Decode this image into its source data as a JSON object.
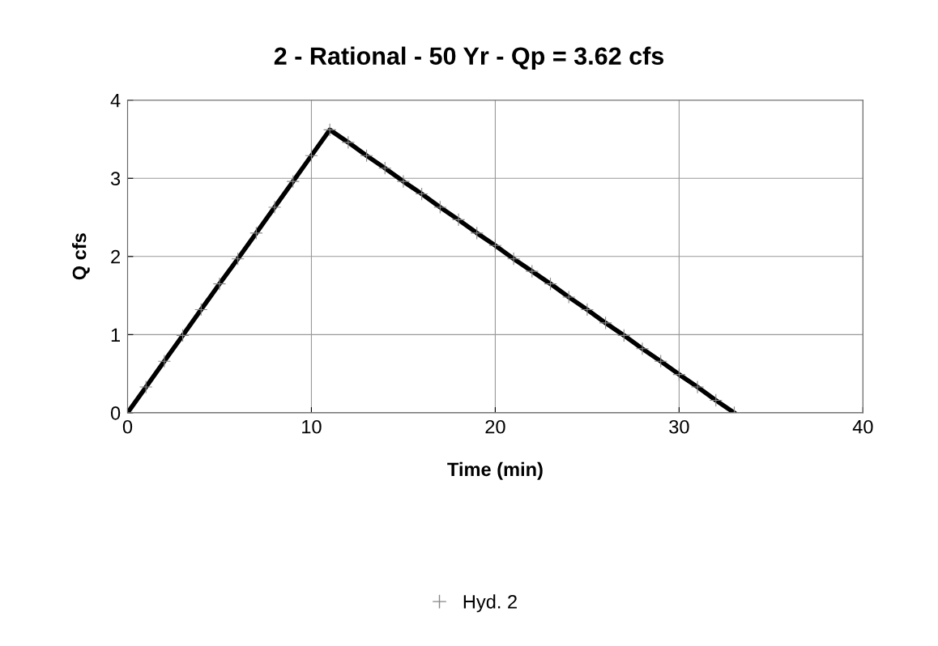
{
  "chart_data": {
    "type": "line",
    "title": "2 - Rational - 50 Yr - Qp = 3.62 cfs",
    "xlabel": "Time (min)",
    "ylabel": "Q cfs",
    "x": [
      0,
      1,
      2,
      3,
      4,
      5,
      6,
      7,
      8,
      9,
      10,
      11,
      12,
      13,
      14,
      15,
      16,
      17,
      18,
      19,
      20,
      21,
      22,
      23,
      24,
      25,
      26,
      27,
      28,
      29,
      30,
      31,
      32,
      33
    ],
    "series": [
      {
        "name": "Hyd. 2",
        "color": "#000000",
        "values": [
          0,
          0.33,
          0.66,
          0.99,
          1.32,
          1.65,
          1.97,
          2.3,
          2.63,
          2.96,
          3.29,
          3.62,
          3.46,
          3.29,
          3.13,
          2.96,
          2.8,
          2.63,
          2.47,
          2.3,
          2.14,
          1.97,
          1.81,
          1.65,
          1.48,
          1.32,
          1.15,
          0.99,
          0.82,
          0.66,
          0.49,
          0.33,
          0.16,
          0
        ]
      }
    ],
    "xlim": [
      0,
      40
    ],
    "xticks": [
      0,
      10,
      20,
      30,
      40
    ],
    "ylim": [
      0,
      4
    ],
    "yticks": [
      0,
      1,
      2,
      3,
      4
    ],
    "grid": true,
    "legend": "bottom",
    "marker": "cross",
    "line_style": "solid"
  }
}
